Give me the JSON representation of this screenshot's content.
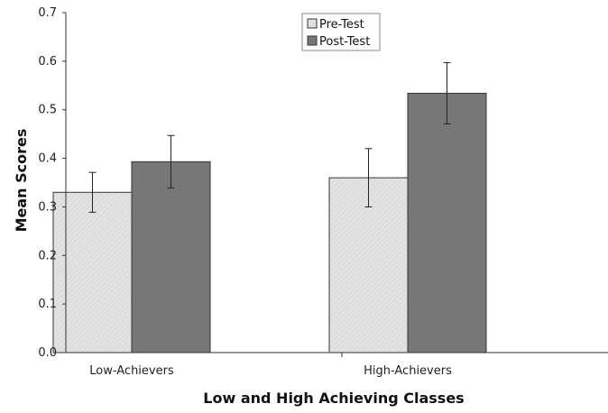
{
  "chart_data": {
    "type": "bar",
    "title": "",
    "xlabel": "Low and High Achieving Classes",
    "ylabel": "Mean Scores",
    "categories": [
      "Low-Achievers",
      "High-Achievers"
    ],
    "series": [
      {
        "name": "Pre-Test",
        "values": [
          0.33,
          0.36
        ],
        "errors": [
          0.041,
          0.06
        ],
        "color": "#dcdcdc"
      },
      {
        "name": "Post-Test",
        "values": [
          0.393,
          0.534
        ],
        "errors": [
          0.054,
          0.063
        ],
        "color": "#777777"
      }
    ],
    "ylim": [
      0,
      0.7
    ],
    "yticks": [
      "0.0",
      "0.1",
      "0.2",
      "0.3",
      "0.4",
      "0.5",
      "0.6",
      "0.7"
    ],
    "grid": false,
    "legend_position": "top-center",
    "error_bars": true
  }
}
